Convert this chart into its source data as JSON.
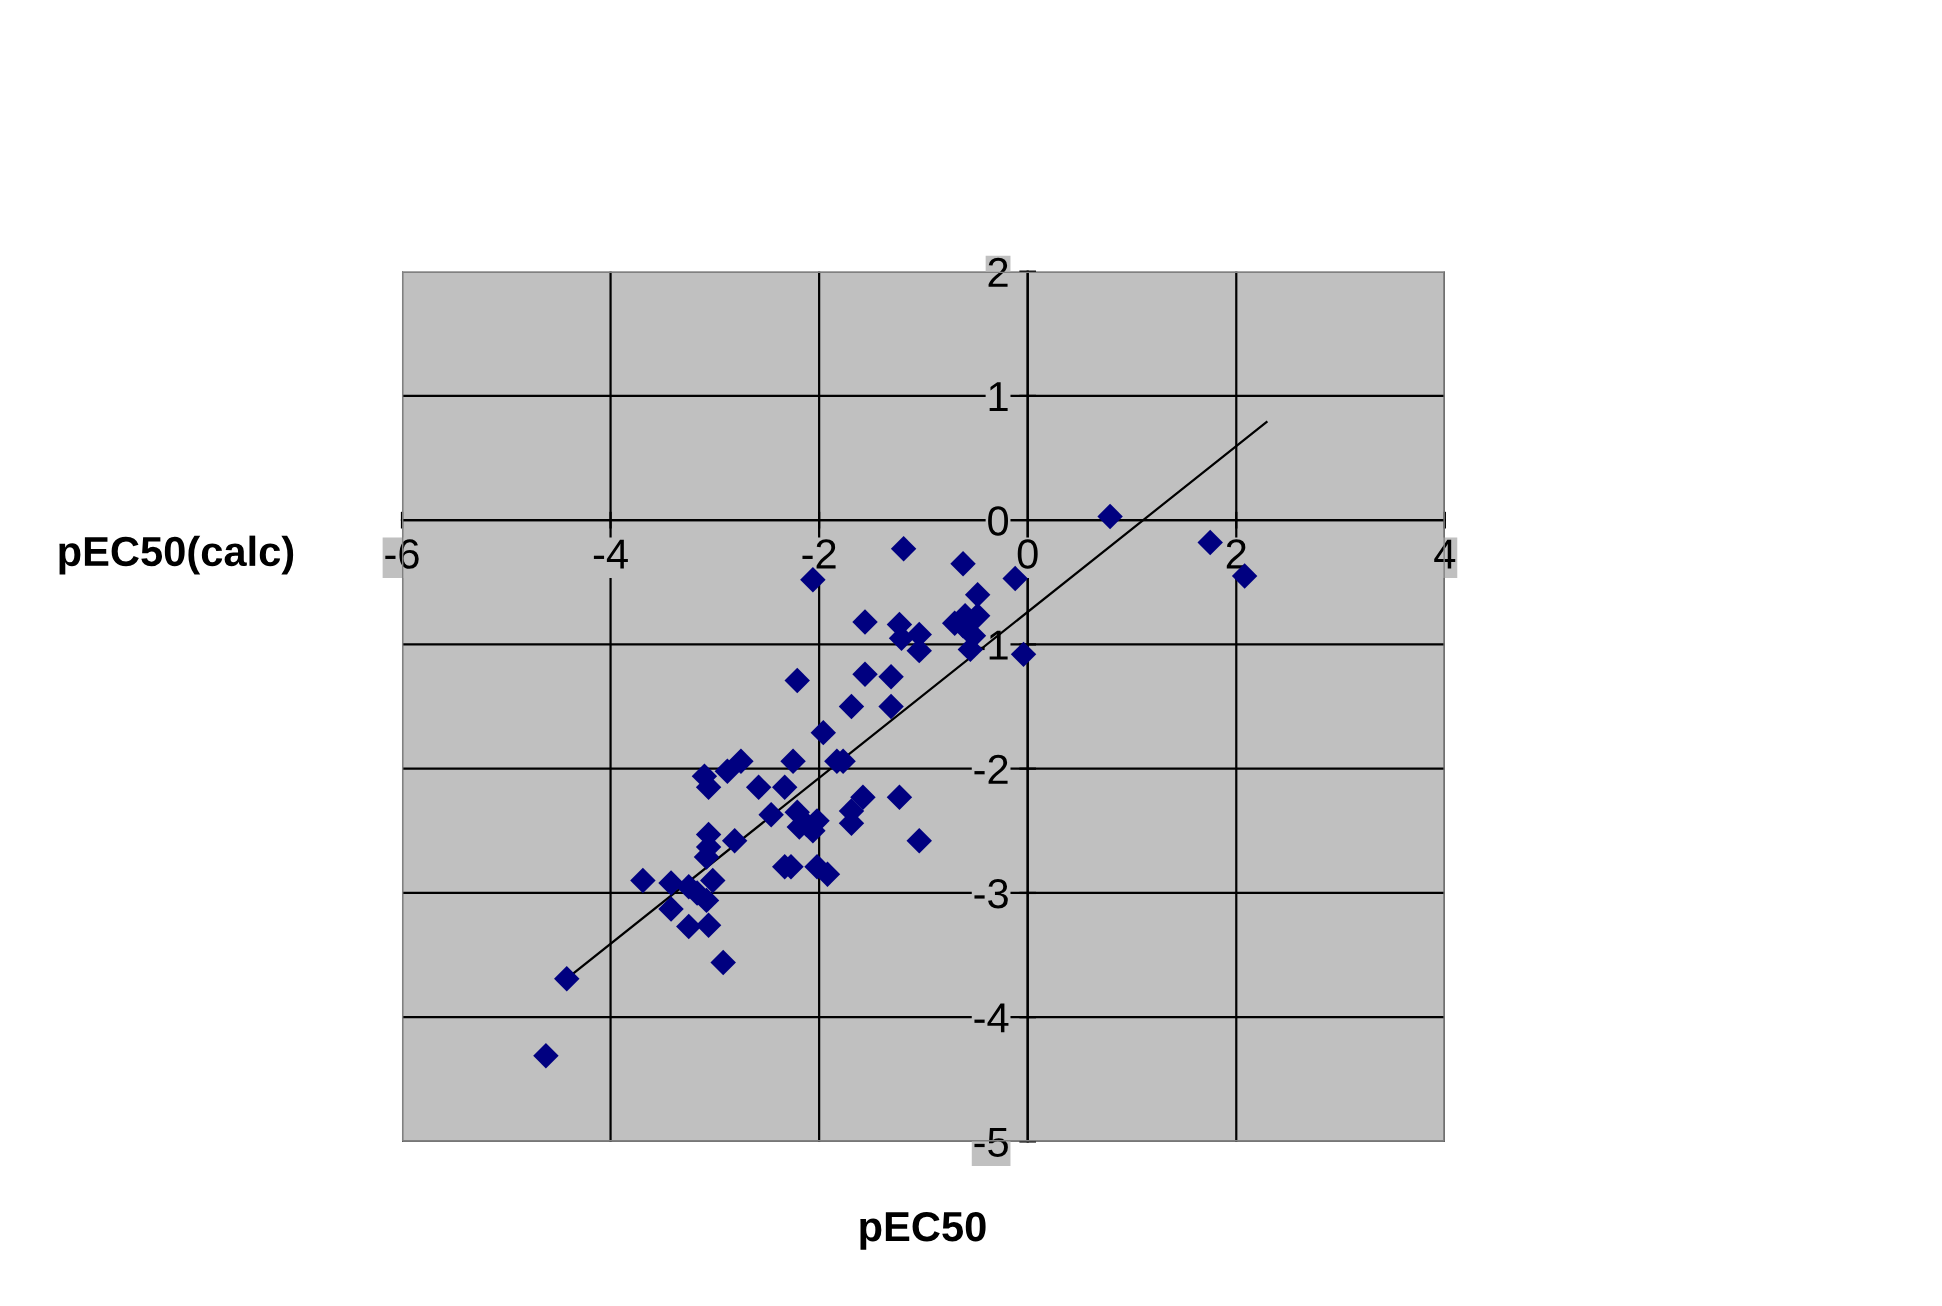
{
  "chart_data": {
    "type": "scatter",
    "xlabel": "pEC50",
    "ylabel": "pEC50(calc)",
    "xlim": [
      -6,
      4
    ],
    "ylim": [
      -5,
      2
    ],
    "xticks": [
      -6,
      -4,
      -2,
      0,
      2,
      4
    ],
    "yticks": [
      -5,
      -4,
      -3,
      -2,
      -1,
      0,
      1,
      2
    ],
    "grid": true,
    "marker": "diamond",
    "series": [
      {
        "color": "#000080",
        "x": [
          -1.19,
          -2.06,
          -0.62,
          -0.12,
          0.79,
          1.75,
          2.08,
          -0.04,
          -1.56,
          -1.23,
          -1.21,
          -1.04,
          -1.04,
          -0.7,
          -0.6,
          -0.62,
          -0.48,
          -0.48,
          -0.52,
          -0.55,
          -2.21,
          -1.56,
          -1.31,
          -1.69,
          -1.31,
          -1.96,
          -1.83,
          -1.77,
          -2.25,
          -2.75,
          -2.88,
          -3.1,
          -3.06,
          -2.58,
          -2.33,
          -2.46,
          -2.21,
          -2.19,
          -2.12,
          -2.02,
          -2.06,
          -1.58,
          -1.69,
          -1.69,
          -1.23,
          -1.04,
          -3.06,
          -3.06,
          -3.08,
          -2.81,
          -2.33,
          -2.27,
          -2.02,
          -1.92,
          -3.69,
          -3.42,
          -3.25,
          -3.17,
          -3.02,
          -3.08,
          -3.42,
          -3.25,
          -3.06,
          -2.92,
          -4.42,
          -4.62
        ],
        "values": [
          -0.23,
          -0.48,
          -0.35,
          -0.47,
          0.03,
          -0.18,
          -0.45,
          -1.08,
          -0.82,
          -0.84,
          -0.95,
          -0.92,
          -1.05,
          -0.83,
          -0.77,
          -0.85,
          -0.6,
          -0.77,
          -0.93,
          -1.04,
          -1.29,
          -1.24,
          -1.26,
          -1.5,
          -1.5,
          -1.71,
          -1.94,
          -1.94,
          -1.94,
          -1.94,
          -2.02,
          -2.06,
          -2.15,
          -2.15,
          -2.15,
          -2.37,
          -2.35,
          -2.47,
          -2.45,
          -2.42,
          -2.5,
          -2.23,
          -2.34,
          -2.44,
          -2.23,
          -2.58,
          -2.53,
          -2.63,
          -2.71,
          -2.58,
          -2.79,
          -2.79,
          -2.79,
          -2.85,
          -2.9,
          -2.92,
          -2.95,
          -3.0,
          -2.9,
          -3.06,
          -3.13,
          -3.27,
          -3.26,
          -3.56,
          -3.69,
          -4.31
        ]
      },
      {
        "type": "line",
        "color": "#000000",
        "marker": "none",
        "x": [
          -4.42,
          2.29
        ],
        "values": [
          -3.69,
          0.79
        ]
      }
    ]
  }
}
